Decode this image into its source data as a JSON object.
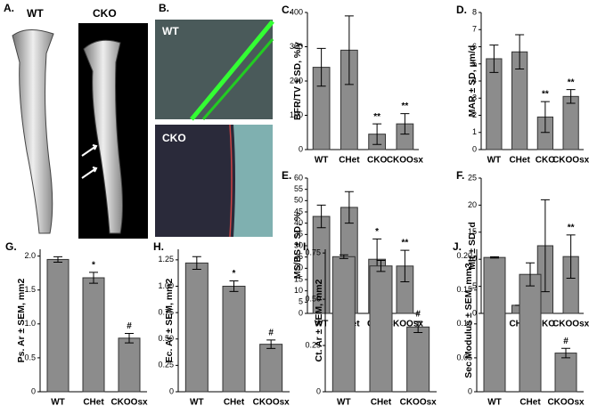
{
  "panel_a": {
    "label": "A.",
    "left": "WT",
    "right": "CKO"
  },
  "panel_b": {
    "label": "B.",
    "top": "WT",
    "bottom": "CKO"
  },
  "chart_data": [
    {
      "type": "bar",
      "panel": "C.",
      "ylabel": "BFR/TV ± SD, %/y",
      "categories": [
        "WT",
        "CHet",
        "CKO",
        "CKOOsx"
      ],
      "values": [
        240,
        290,
        45,
        75
      ],
      "errors": [
        55,
        100,
        30,
        30
      ],
      "annotations": [
        null,
        null,
        "**",
        "**"
      ],
      "color": "#8c8c8c",
      "ylim": [
        0,
        400
      ],
      "yticks": [
        0,
        100,
        200,
        300,
        400
      ]
    },
    {
      "type": "bar",
      "panel": "D.",
      "ylabel": "MAR ± SD, µm/d",
      "categories": [
        "WT",
        "CHet",
        "CKO",
        "CKOOsx"
      ],
      "values": [
        5.3,
        5.7,
        1.9,
        3.1
      ],
      "errors": [
        0.8,
        1.0,
        0.9,
        0.4
      ],
      "annotations": [
        null,
        null,
        "**",
        "**"
      ],
      "color": "#8c8c8c",
      "ylim": [
        0,
        8
      ],
      "yticks": [
        0,
        1,
        2,
        3,
        4,
        5,
        6,
        7,
        8
      ]
    },
    {
      "type": "bar",
      "panel": "E.",
      "ylabel": "MS/BS ± SD, %",
      "categories": [
        "WT",
        "CHet",
        "CKO",
        "CKOOsx"
      ],
      "values": [
        43,
        47,
        24,
        21
      ],
      "errors": [
        5,
        7,
        9,
        7
      ],
      "annotations": [
        null,
        null,
        "*",
        "**"
      ],
      "color": "#8c8c8c",
      "ylim": [
        0,
        60
      ],
      "yticks": [
        0,
        5,
        10,
        15,
        20,
        25,
        30,
        35,
        40,
        45,
        50,
        55,
        60
      ]
    },
    {
      "type": "bar",
      "panel": "F.",
      "ylabel": "Mlt ± SD, d",
      "categories": [
        "WT",
        "CHet",
        "CKO",
        "CKOOsx"
      ],
      "values": [
        2,
        1.5,
        12.5,
        10.5
      ],
      "errors": [
        1.2,
        0,
        8.5,
        4
      ],
      "annotations": [
        null,
        null,
        null,
        "**"
      ],
      "color": "#8c8c8c",
      "ylim": [
        0,
        25
      ],
      "yticks": [
        0,
        5,
        10,
        15,
        20,
        25
      ]
    },
    {
      "type": "bar",
      "panel": "G.",
      "ylabel": "Ps. Ar ± SEM, mm2",
      "categories": [
        "WT",
        "CHet",
        "CKOOsx"
      ],
      "values": [
        1.95,
        1.68,
        0.79
      ],
      "errors": [
        0.04,
        0.08,
        0.07
      ],
      "annotations": [
        null,
        "*",
        "#"
      ],
      "color": "#8c8c8c",
      "ylim": [
        0,
        2.1
      ],
      "yticks": [
        0,
        0.5,
        {
          "value": 1,
          "label": "1.0"
        },
        1.5,
        {
          "value": 2,
          "label": "2.0"
        }
      ]
    },
    {
      "type": "bar",
      "panel": "H.",
      "ylabel": "Ec. Ar ± SEM, mm2",
      "categories": [
        "WT",
        "CHet",
        "CKOOsx"
      ],
      "values": [
        1.22,
        1.0,
        0.45
      ],
      "errors": [
        0.06,
        0.05,
        0.04
      ],
      "annotations": [
        null,
        "*",
        "#"
      ],
      "color": "#8c8c8c",
      "ylim": [
        0,
        1.35
      ],
      "yticks": [
        0,
        0.25,
        {
          "value": 0.5,
          "label": "0.50"
        },
        0.75,
        {
          "value": 1,
          "label": "1.00"
        },
        1.25
      ]
    },
    {
      "type": "bar",
      "panel": "I.",
      "ylabel": "Ct. Ar ± SEM, mm2",
      "categories": [
        "WT",
        "CHet",
        "CKOOsx"
      ],
      "values": [
        0.73,
        0.68,
        0.35
      ],
      "errors": [
        0.01,
        0.03,
        0.03
      ],
      "annotations": [
        null,
        null,
        "#"
      ],
      "color": "#8c8c8c",
      "ylim": [
        0,
        0.77
      ],
      "yticks": [
        0,
        0.25,
        {
          "value": 0.5,
          "label": "0.50"
        },
        0.75
      ]
    },
    {
      "type": "bar",
      "panel": "J.",
      "ylabel": "Sec Modulus ± SEM, mm3",
      "categories": [
        "WT",
        "CHet",
        "CKOOsx"
      ],
      "values": [
        0.198,
        0.173,
        0.057
      ],
      "errors": [
        0.001,
        0.017,
        0.007
      ],
      "annotations": [
        null,
        null,
        "#"
      ],
      "color": "#8c8c8c",
      "ylim": [
        0,
        0.21
      ],
      "yticks": [
        0,
        0.05,
        {
          "value": 0.1,
          "label": "0.10"
        },
        0.15,
        {
          "value": 0.2,
          "label": "0.20"
        }
      ]
    }
  ]
}
